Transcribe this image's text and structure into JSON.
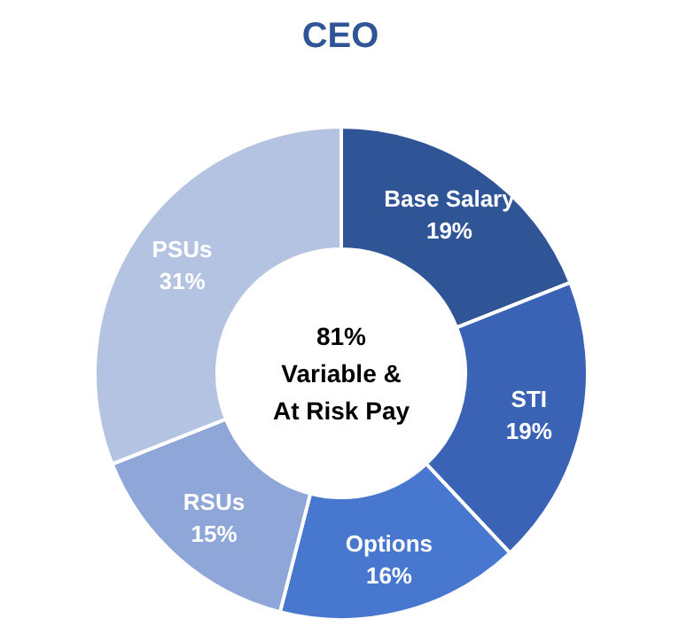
{
  "chart_data": {
    "type": "donut",
    "title": "CEO",
    "categories": [
      "Base Salary",
      "STI",
      "Options",
      "RSUs",
      "PSUs"
    ],
    "values": [
      19,
      19,
      16,
      15,
      31
    ],
    "value_labels": [
      "19%",
      "19%",
      "16%",
      "15%",
      "31%"
    ],
    "colors": [
      "#2f5597",
      "#3a63b5",
      "#4877d0",
      "#8fa6d8",
      "#b5c3e3"
    ],
    "annotations": [
      "81%\nVariable &\nAt Risk Pay"
    ]
  }
}
